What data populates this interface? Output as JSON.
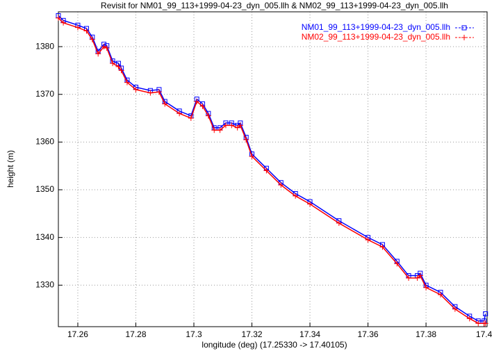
{
  "chart_data": {
    "type": "line",
    "title": "Revisit for NM01_99_113+1999-04-23_dyn_005.llh & NM02_99_113+1999-04-23_dyn_005.llh",
    "x_label": "longitude (deg) (17.25330 -> 17.40105)",
    "y_label": "height (m)",
    "x": [
      17.2533,
      17.255,
      17.26,
      17.263,
      17.265,
      17.267,
      17.269,
      17.27,
      17.272,
      17.274,
      17.275,
      17.277,
      17.28,
      17.285,
      17.288,
      17.29,
      17.295,
      17.299,
      17.301,
      17.303,
      17.305,
      17.307,
      17.309,
      17.311,
      17.313,
      17.315,
      17.316,
      17.318,
      17.32,
      17.325,
      17.33,
      17.335,
      17.34,
      17.35,
      17.36,
      17.365,
      17.37,
      17.374,
      17.377,
      17.378,
      17.38,
      17.385,
      17.39,
      17.395,
      17.398,
      17.4,
      17.4005
    ],
    "series": [
      {
        "name": "NM01_99_113+1999-04-23_dyn_005.llh",
        "color": "#0000ff",
        "marker": "square",
        "values": [
          1386.5,
          1385.5,
          1384.5,
          1383.8,
          1382,
          1379,
          1380.5,
          1380.2,
          1377,
          1376.5,
          1375.5,
          1373,
          1371.5,
          1370.8,
          1371,
          1368.5,
          1366.5,
          1365.5,
          1369,
          1368,
          1366,
          1363,
          1363,
          1364,
          1364,
          1363.5,
          1364,
          1361,
          1357.5,
          1354.5,
          1351.5,
          1349.2,
          1347.5,
          1343.5,
          1340,
          1338.5,
          1335,
          1332,
          1332,
          1332.5,
          1330,
          1328.5,
          1325.5,
          1323.5,
          1322.5,
          1322.5,
          1324
        ]
      },
      {
        "name": "NM02_99_113+1999-04-23_dyn_005.llh",
        "color": "#ff0000",
        "marker": "plus",
        "values": [
          1386,
          1385,
          1384,
          1383.3,
          1381.5,
          1378.5,
          1380,
          1379.7,
          1376.5,
          1375.8,
          1375,
          1372.5,
          1371,
          1370.3,
          1370.5,
          1368,
          1366,
          1365,
          1368.5,
          1367.5,
          1365.5,
          1362.5,
          1362.5,
          1363.5,
          1363.5,
          1363,
          1363.5,
          1360.5,
          1357,
          1354,
          1351,
          1348.7,
          1347,
          1343,
          1339.5,
          1338,
          1334.5,
          1331.5,
          1331.5,
          1332,
          1329.5,
          1328,
          1325,
          1323,
          1322,
          1322,
          1322
        ]
      }
    ],
    "xlim": [
      17.2533,
      17.40105
    ],
    "ylim": [
      1321.3,
      1387.3
    ],
    "xticks": [
      17.26,
      17.28,
      17.3,
      17.32,
      17.34,
      17.36,
      17.38,
      17.4
    ],
    "yticks": [
      1330,
      1340,
      1350,
      1360,
      1370,
      1380
    ],
    "grid": true,
    "legend": "top-right"
  }
}
